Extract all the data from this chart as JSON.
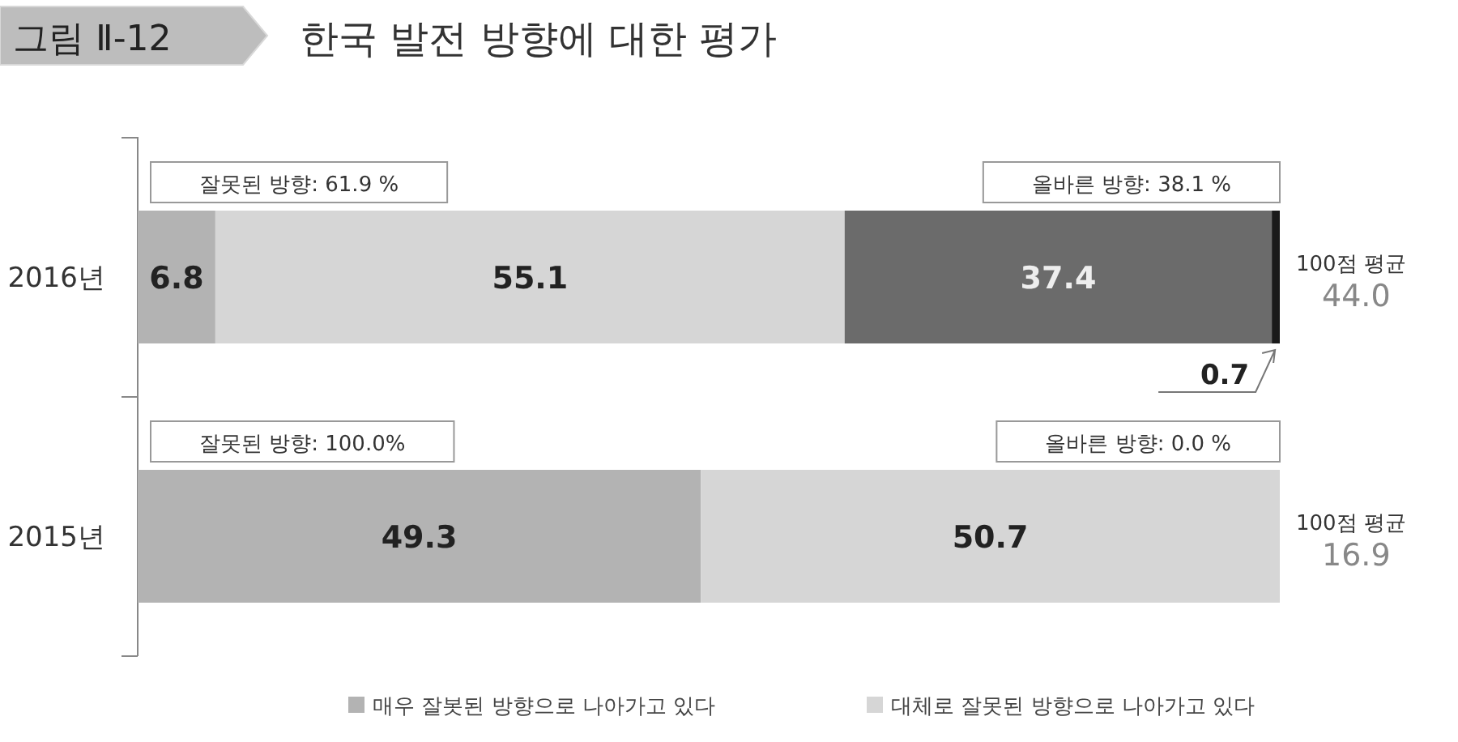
{
  "chart_data": {
    "type": "bar",
    "orientation": "horizontal",
    "stacked": true,
    "title": "한국 발전 방향에 대한 평가",
    "subtitle": "그림 Ⅱ-12",
    "categories": [
      "2016년",
      "2015년"
    ],
    "xlim": [
      0,
      100
    ],
    "tick_labels": "y",
    "legend": "bottom",
    "series": [
      {
        "name": "매우 잘봇된 방향으로 나아가고 있다",
        "color": "#b3b3b3",
        "values": [
          6.8,
          49.3
        ],
        "value_labels": [
          "6.8",
          "49.3"
        ]
      },
      {
        "name": "대체로 잘못된 방향으로 나아가고 있다",
        "color": "#d6d6d6",
        "values": [
          55.1,
          50.7
        ],
        "value_labels": [
          "55.1",
          "50.7"
        ]
      },
      {
        "color": "#6b6b6b",
        "values": [
          37.4,
          0
        ],
        "value_labels": [
          "37.4",
          null
        ]
      },
      {
        "color": "#1a1a1a",
        "values": [
          0.7,
          0
        ],
        "value_labels": [
          "0.7",
          null
        ]
      }
    ],
    "annotations": [
      "잘못된 방향: 61.9 %",
      "올바른 방향: 38.1 %",
      "100점 평균 44.0",
      "잘못된 방향: 100.0%",
      "올바른 방향: 0.0 %",
      "100점 평균 16.9"
    ]
  }
}
